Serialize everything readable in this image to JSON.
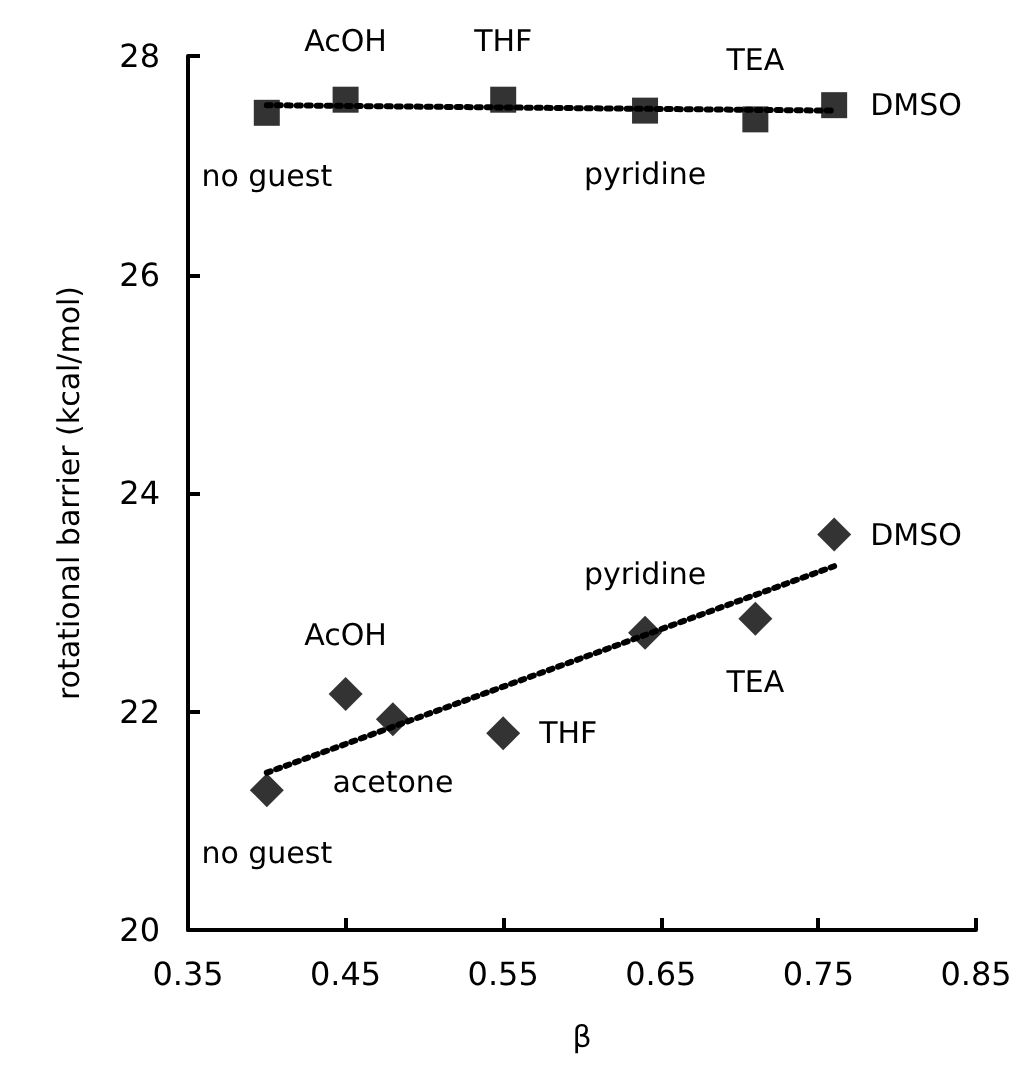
{
  "chart_data": {
    "type": "scatter",
    "xlabel": "β",
    "ylabel": "rotational barrier (kcal/mol)",
    "xlim": [
      0.35,
      0.85
    ],
    "xticks": [
      0.35,
      0.45,
      0.55,
      0.65,
      0.75,
      0.85
    ],
    "ylim": [
      20,
      28
    ],
    "yticks": [
      20,
      22,
      24,
      26,
      28
    ],
    "grid": false,
    "series": [
      {
        "marker": "square",
        "color": "#000000",
        "x": [
          0.4,
          0.45,
          0.55,
          0.64,
          0.71,
          0.76
        ],
        "values": [
          27.48,
          27.6,
          27.6,
          27.5,
          27.42,
          27.55
        ]
      },
      {
        "marker": "diamond",
        "color": "#000000",
        "x": [
          0.4,
          0.45,
          0.48,
          0.55,
          0.64,
          0.71,
          0.76
        ],
        "values": [
          21.28,
          22.16,
          21.93,
          21.8,
          22.72,
          22.85,
          23.62
        ]
      },
      {
        "type": "line",
        "marker": "none",
        "line_style": "dotted",
        "color": "#000000",
        "x": [
          0.4,
          0.76
        ],
        "values": [
          27.55,
          27.5
        ]
      },
      {
        "type": "line",
        "marker": "none",
        "line_style": "dotted",
        "color": "#000000",
        "x": [
          0.4,
          0.76
        ],
        "values": [
          21.44,
          23.33
        ]
      }
    ],
    "annotations": [
      {
        "text": "no guest",
        "x": 0.4,
        "y": 27.48
      },
      {
        "text": "AcOH",
        "x": 0.45,
        "y": 27.6
      },
      {
        "text": "THF",
        "x": 0.55,
        "y": 27.6
      },
      {
        "text": "pyridine",
        "x": 0.64,
        "y": 27.5
      },
      {
        "text": "TEA",
        "x": 0.71,
        "y": 27.42
      },
      {
        "text": "DMSO",
        "x": 0.76,
        "y": 27.55
      },
      {
        "text": "no guest",
        "x": 0.4,
        "y": 21.28
      },
      {
        "text": "AcOH",
        "x": 0.45,
        "y": 22.16
      },
      {
        "text": "acetone",
        "x": 0.48,
        "y": 21.93
      },
      {
        "text": "THF",
        "x": 0.55,
        "y": 21.8
      },
      {
        "text": "pyridine",
        "x": 0.64,
        "y": 22.72
      },
      {
        "text": "TEA",
        "x": 0.71,
        "y": 22.85
      },
      {
        "text": "DMSO",
        "x": 0.76,
        "y": 23.62
      }
    ]
  }
}
